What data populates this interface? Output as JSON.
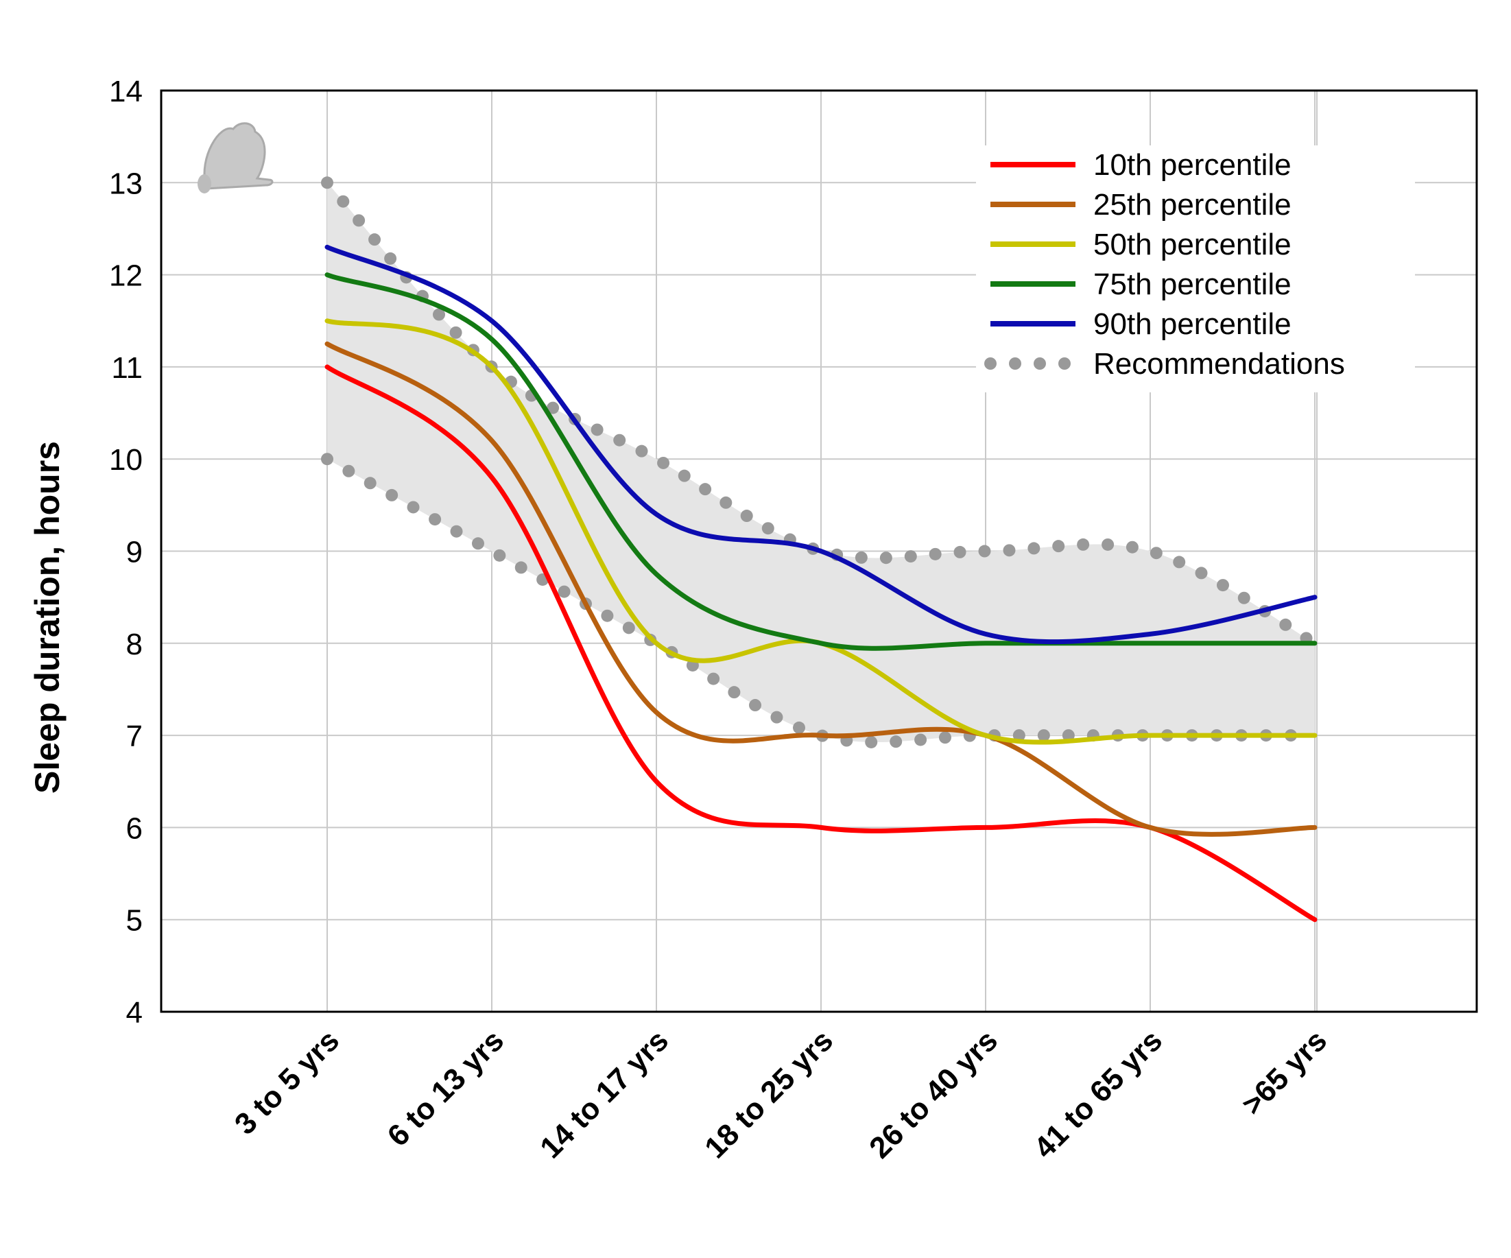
{
  "chart_data": {
    "type": "line",
    "title": "",
    "xlabel": "",
    "ylabel": "Sleep duration, hours",
    "categories": [
      "3 to 5 yrs",
      "6 to 13 yrs",
      "14 to 17 yrs",
      "18 to 25 yrs",
      "26 to 40 yrs",
      "41 to 65 yrs",
      ">65 yrs"
    ],
    "ylim": [
      4,
      14
    ],
    "yticks": [
      "4",
      "5",
      "6",
      "7",
      "8",
      "9",
      "10",
      "11",
      "12",
      "13",
      "14"
    ],
    "grid": true,
    "legend_position": "top-right",
    "series": [
      {
        "name": "10th percentile",
        "color": "#ff0000",
        "style": "solid",
        "values": [
          11,
          9.8,
          6.5,
          6.0,
          6.0,
          6.0,
          5.0
        ]
      },
      {
        "name": "25th percentile",
        "color": "#b8600f",
        "style": "solid",
        "values": [
          11.25,
          10.2,
          7.25,
          7.0,
          7.0,
          6.0,
          6.0
        ]
      },
      {
        "name": "50th percentile",
        "color": "#c8c400",
        "style": "solid",
        "values": [
          11.5,
          11.0,
          8.0,
          8.0,
          7.0,
          7.0,
          7.0
        ]
      },
      {
        "name": "75th percentile",
        "color": "#137a13",
        "style": "solid",
        "values": [
          12.0,
          11.3,
          8.75,
          8.0,
          8.0,
          8.0,
          8.0
        ]
      },
      {
        "name": "90th percentile",
        "color": "#0c0cb0",
        "style": "solid",
        "values": [
          12.3,
          11.5,
          9.4,
          9.0,
          8.1,
          8.1,
          8.5
        ]
      },
      {
        "name": "Recommendations",
        "color": "#999999",
        "style": "dotted",
        "upper": [
          13,
          11.0,
          10.0,
          9.0,
          9.0,
          9.0,
          8.0
        ],
        "lower": [
          10,
          9.0,
          8.0,
          7.0,
          7.0,
          7.0,
          7.0
        ]
      }
    ],
    "recommendation_band": {
      "fill": "#e5e5e5"
    }
  }
}
